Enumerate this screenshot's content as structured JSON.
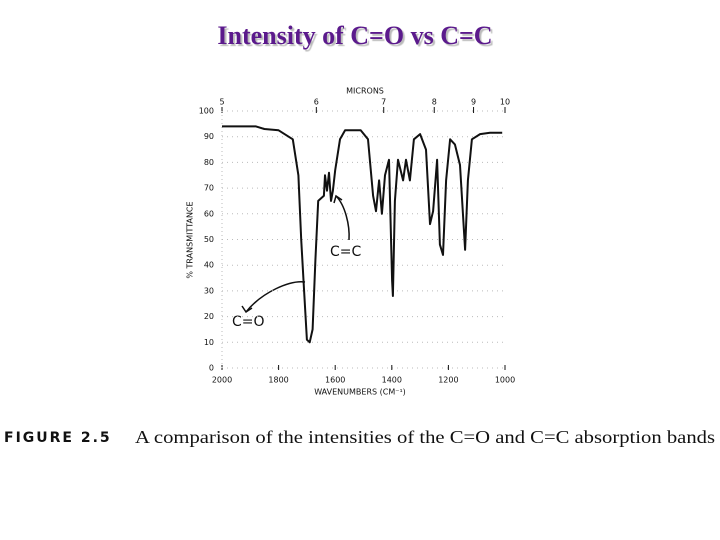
{
  "chart_data": {
    "type": "line",
    "title": "Intensity of C=O vs C=C",
    "xlabel": "WAVENUMBERS (CM⁻¹)",
    "ylabel": "% TRANSMITTANCE",
    "x2label": "MICRONS",
    "x": [
      2000,
      1880,
      1850,
      1800,
      1750,
      1730,
      1720,
      1710,
      1700,
      1690,
      1680,
      1670,
      1660,
      1640,
      1636,
      1629,
      1622,
      1615,
      1608,
      1600,
      1583,
      1565,
      1510,
      1484,
      1466,
      1456,
      1445,
      1435,
      1424,
      1410,
      1399,
      1396,
      1389,
      1378,
      1360,
      1350,
      1336,
      1322,
      1300,
      1279,
      1265,
      1254,
      1240,
      1230,
      1219,
      1208,
      1194,
      1177,
      1159,
      1141,
      1131,
      1117,
      1088,
      1053,
      1010
    ],
    "values": [
      94,
      94,
      93,
      92.5,
      89,
      75,
      50,
      30,
      11,
      10,
      15,
      42,
      65,
      67,
      75,
      69,
      76,
      65,
      69,
      77,
      89,
      92.5,
      92.5,
      89,
      67,
      61,
      73,
      60,
      75,
      81,
      34,
      28,
      65,
      81,
      73,
      81,
      73,
      89,
      91,
      85,
      56,
      61,
      81,
      48,
      44,
      73,
      89,
      87,
      79,
      46,
      73,
      89,
      91,
      91.5,
      91.5
    ],
    "color": "#111111",
    "xlim": [
      2000,
      1000
    ],
    "ylim": [
      0,
      100
    ],
    "xticks": [
      2000,
      1800,
      1600,
      1400,
      1200,
      1000
    ],
    "yticks": [
      0,
      10,
      20,
      30,
      40,
      50,
      60,
      70,
      80,
      90,
      100
    ],
    "x2ticks": [
      5,
      6,
      7,
      8,
      9,
      10
    ],
    "grid": true,
    "annotations": [
      "C=C",
      "C=O"
    ],
    "caption_label": "FIGURE 2.5",
    "caption": "A comparison of the intensities of the C=O and C=C absorption bands"
  }
}
